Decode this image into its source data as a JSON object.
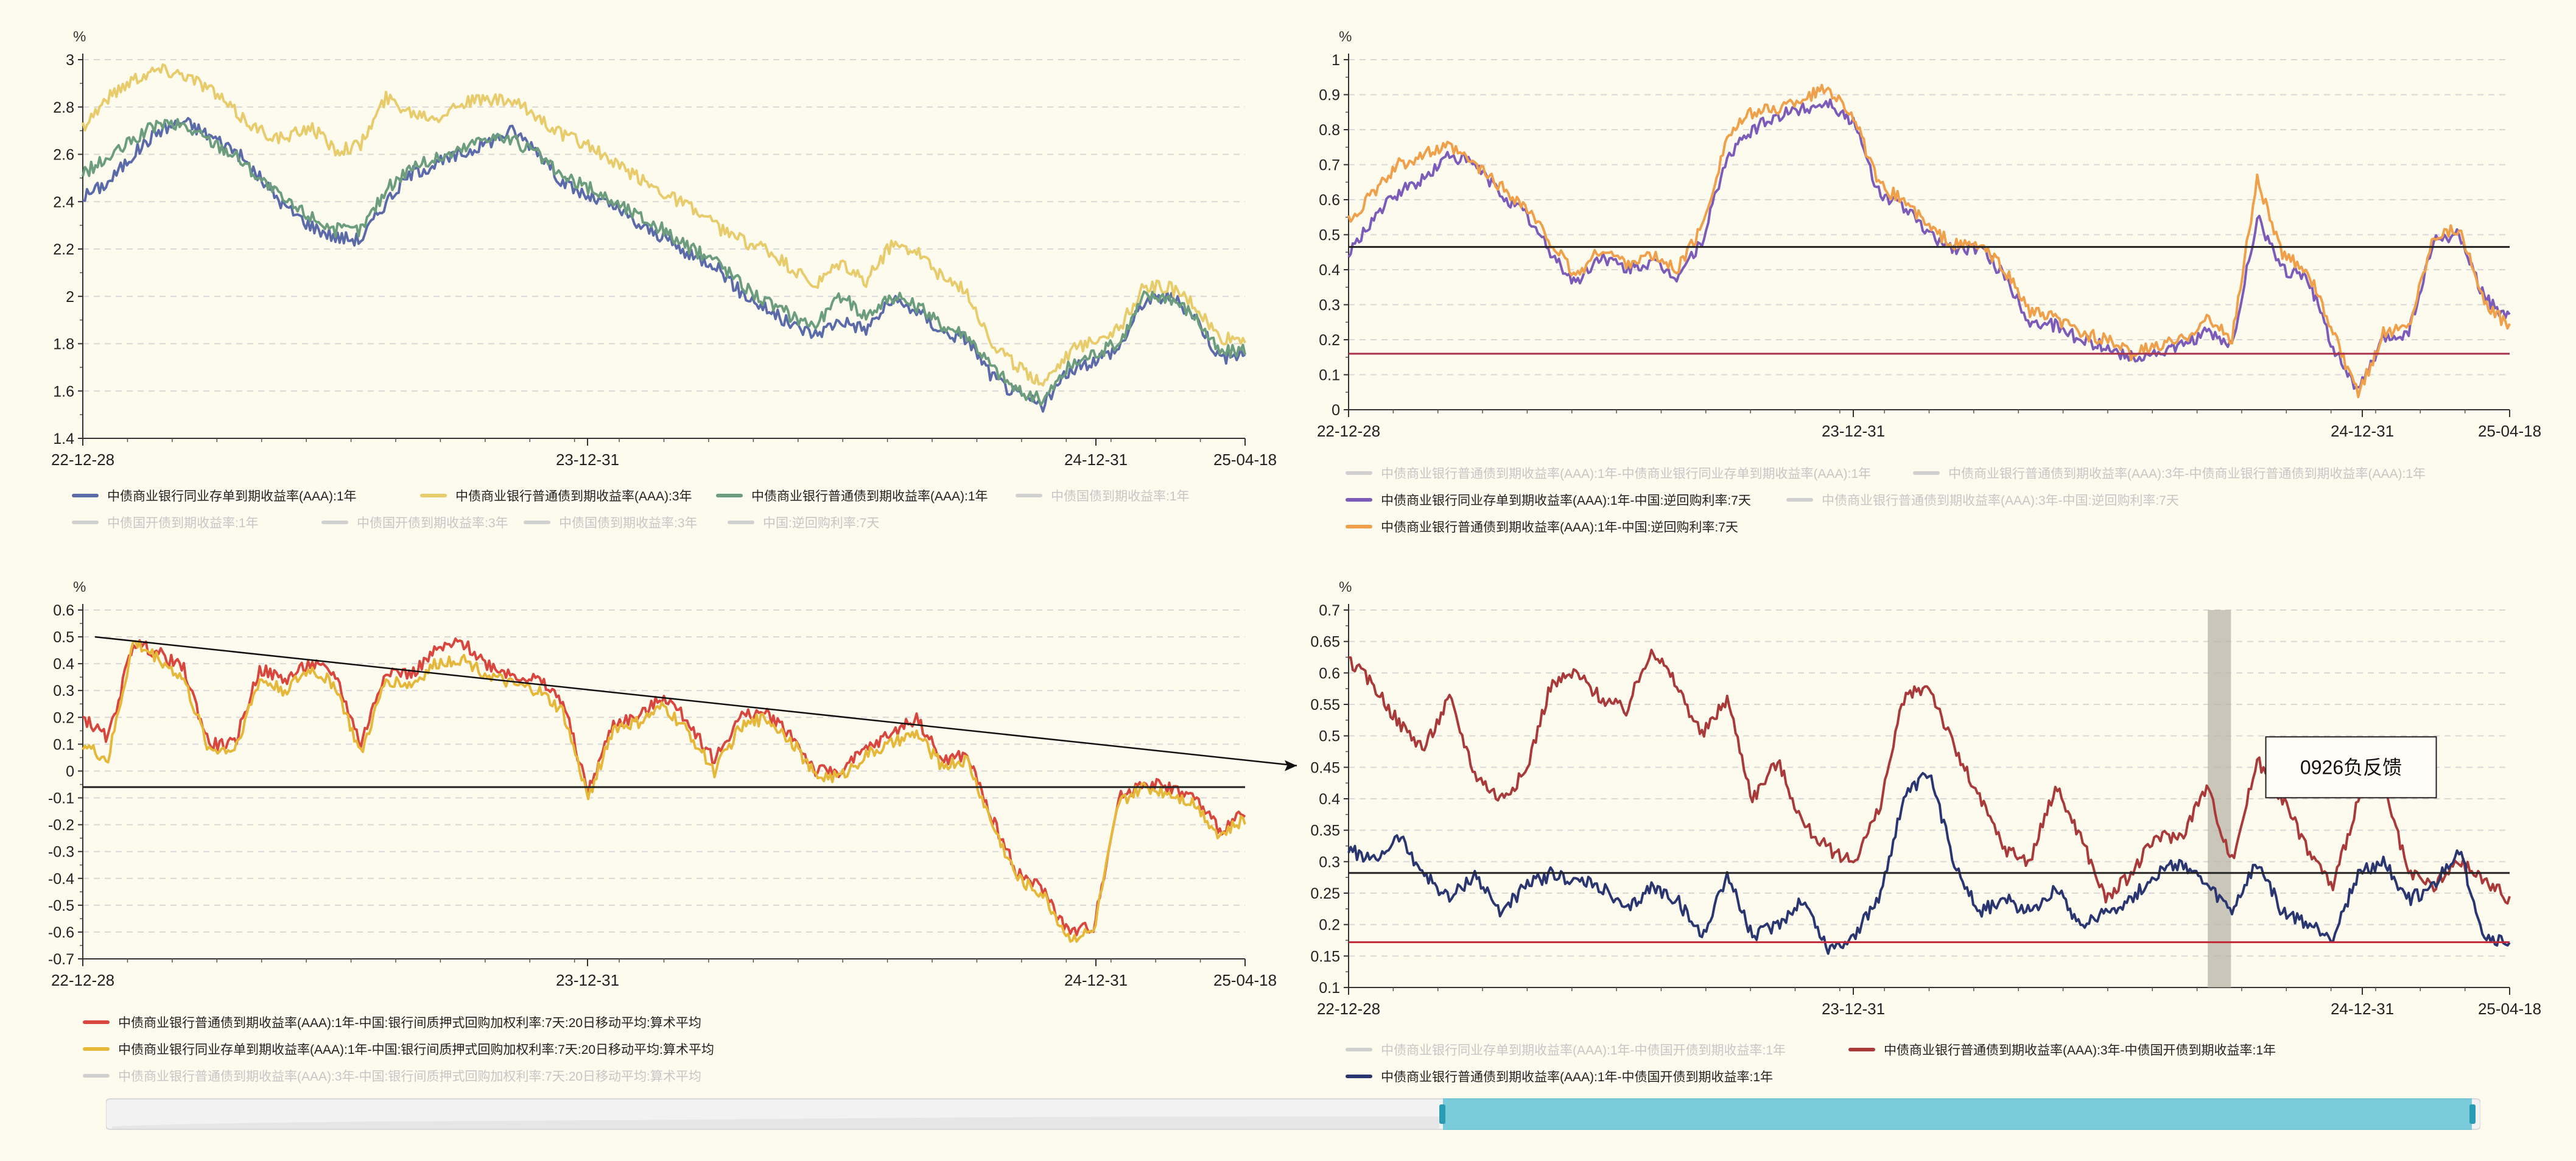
{
  "chart_data": [
    {
      "type": "line",
      "unit_label": "%",
      "x_ticks": [
        "22-12-28",
        "23-12-31",
        "24-12-31",
        "25-04-18"
      ],
      "ylim": [
        1.4,
        3.0
      ],
      "y_ticks": [
        "1.4",
        "1.6",
        "1.8",
        "2",
        "2.2",
        "2.4",
        "2.6",
        "2.8",
        "3"
      ],
      "legend": [
        {
          "name": "中债商业银行同业存单到期收益率(AAA):1年",
          "color": "#5b6aa8",
          "active": true
        },
        {
          "name": "中债商业银行普通债到期收益率(AAA):3年",
          "color": "#e8cc6c",
          "active": true
        },
        {
          "name": "中债商业银行普通债到期收益率(AAA):1年",
          "color": "#6c9e7e",
          "active": true
        },
        {
          "name": "中债国债到期收益率:1年",
          "color": "#cccccc",
          "active": false
        },
        {
          "name": "中债国开债到期收益率:1年",
          "color": "#cccccc",
          "active": false
        },
        {
          "name": "中债国开债到期收益率:3年",
          "color": "#cccccc",
          "active": false
        },
        {
          "name": "中债国债到期收益率:3年",
          "color": "#cccccc",
          "active": false
        },
        {
          "name": "中国:逆回购利率:7天",
          "color": "#cccccc",
          "active": false
        }
      ],
      "series": [
        {
          "name": "中债商业银行同业存单到期收益率(AAA):1年",
          "color": "#5b6aa8",
          "values": [
            2.42,
            2.48,
            2.6,
            2.7,
            2.74,
            2.68,
            2.62,
            2.5,
            2.38,
            2.3,
            2.25,
            2.24,
            2.4,
            2.52,
            2.56,
            2.6,
            2.65,
            2.7,
            2.62,
            2.48,
            2.42,
            2.38,
            2.3,
            2.25,
            2.17,
            2.14,
            2.02,
            1.95,
            1.88,
            1.84,
            1.9,
            1.86,
            1.98,
            1.94,
            1.85,
            1.82,
            1.66,
            1.58,
            1.54,
            1.68,
            1.73,
            1.78,
            1.98,
            2.0,
            1.92,
            1.74,
            1.76
          ]
        },
        {
          "name": "中债商业银行普通债到期收益率(AAA):3年",
          "color": "#e8cc6c",
          "values": [
            2.72,
            2.84,
            2.92,
            2.96,
            2.94,
            2.88,
            2.78,
            2.7,
            2.66,
            2.72,
            2.62,
            2.64,
            2.84,
            2.78,
            2.76,
            2.82,
            2.83,
            2.82,
            2.76,
            2.68,
            2.64,
            2.56,
            2.5,
            2.44,
            2.38,
            2.3,
            2.24,
            2.2,
            2.12,
            2.04,
            2.14,
            2.06,
            2.22,
            2.2,
            2.08,
            2.02,
            1.8,
            1.7,
            1.64,
            1.76,
            1.82,
            1.86,
            2.04,
            2.04,
            1.96,
            1.82,
            1.82
          ]
        },
        {
          "name": "中债商业银行普通债到期收益率(AAA):1年",
          "color": "#6c9e7e",
          "values": [
            2.52,
            2.58,
            2.66,
            2.73,
            2.72,
            2.66,
            2.6,
            2.5,
            2.4,
            2.34,
            2.28,
            2.28,
            2.45,
            2.55,
            2.58,
            2.62,
            2.68,
            2.66,
            2.6,
            2.5,
            2.46,
            2.4,
            2.34,
            2.28,
            2.2,
            2.16,
            2.06,
            1.98,
            1.92,
            1.88,
            2.0,
            1.92,
            2.0,
            1.96,
            1.88,
            1.84,
            1.7,
            1.6,
            1.56,
            1.7,
            1.76,
            1.8,
            2.0,
            2.0,
            1.92,
            1.76,
            1.78
          ]
        }
      ],
      "hlines": []
    },
    {
      "type": "line",
      "unit_label": "%",
      "x_ticks": [
        "22-12-28",
        "23-12-31",
        "24-12-31",
        "25-04-18"
      ],
      "ylim": [
        0,
        1.0
      ],
      "y_ticks": [
        "0",
        "0.1",
        "0.2",
        "0.3",
        "0.4",
        "0.5",
        "0.6",
        "0.7",
        "0.8",
        "0.9",
        "1"
      ],
      "legend": [
        {
          "name": "中债商业银行普通债到期收益率(AAA):1年-中债商业银行同业存单到期收益率(AAA):1年",
          "color": "#cccccc",
          "active": false
        },
        {
          "name": "中债商业银行普通债到期收益率(AAA):3年-中债商业银行普通债到期收益率(AAA):1年",
          "color": "#cccccc",
          "active": false
        },
        {
          "name": "中债商业银行同业存单到期收益率(AAA):1年-中国:逆回购利率:7天",
          "color": "#7c5cb8",
          "active": true
        },
        {
          "name": "中债商业银行普通债到期收益率(AAA):3年-中国:逆回购利率:7天",
          "color": "#cccccc",
          "active": false
        },
        {
          "name": "中债商业银行普通债到期收益率(AAA):1年-中国:逆回购利率:7天",
          "color": "#f0a04a",
          "active": true
        }
      ],
      "series": [
        {
          "name": "中债商业银行同业存单到期收益率(AAA):1年-中国:逆回购利率:7天",
          "color": "#7c5cb8",
          "values": [
            0.44,
            0.55,
            0.62,
            0.66,
            0.73,
            0.7,
            0.62,
            0.56,
            0.45,
            0.36,
            0.44,
            0.4,
            0.42,
            0.38,
            0.48,
            0.72,
            0.8,
            0.84,
            0.86,
            0.88,
            0.82,
            0.62,
            0.58,
            0.5,
            0.46,
            0.46,
            0.38,
            0.25,
            0.24,
            0.2,
            0.18,
            0.15,
            0.16,
            0.18,
            0.22,
            0.18,
            0.55,
            0.4,
            0.38,
            0.18,
            0.05,
            0.2,
            0.22,
            0.48,
            0.5,
            0.32,
            0.26
          ]
        },
        {
          "name": "中债商业银行普通债到期收益率(AAA):1年-中国:逆回购利率:7天",
          "color": "#f0a04a",
          "values": [
            0.54,
            0.62,
            0.7,
            0.73,
            0.75,
            0.7,
            0.64,
            0.58,
            0.48,
            0.38,
            0.46,
            0.42,
            0.44,
            0.4,
            0.52,
            0.78,
            0.85,
            0.86,
            0.89,
            0.92,
            0.84,
            0.64,
            0.6,
            0.52,
            0.47,
            0.47,
            0.4,
            0.28,
            0.26,
            0.22,
            0.2,
            0.16,
            0.18,
            0.2,
            0.26,
            0.2,
            0.66,
            0.44,
            0.4,
            0.22,
            0.04,
            0.22,
            0.24,
            0.5,
            0.52,
            0.3,
            0.24
          ]
        }
      ],
      "hlines": [
        {
          "y": 0.465,
          "color": "#222222"
        },
        {
          "y": 0.16,
          "color": "#a8324a"
        }
      ]
    },
    {
      "type": "line",
      "unit_label": "%",
      "x_ticks": [
        "22-12-28",
        "23-12-31",
        "24-12-31",
        "25-04-18"
      ],
      "ylim": [
        -0.7,
        0.6
      ],
      "y_ticks": [
        "-0.7",
        "-0.6",
        "-0.5",
        "-0.4",
        "-0.3",
        "-0.2",
        "-0.1",
        "0",
        "0.1",
        "0.2",
        "0.3",
        "0.4",
        "0.5",
        "0.6"
      ],
      "legend": [
        {
          "name": "中债商业银行普通债到期收益率(AAA):1年-中国:银行间质押式回购加权利率:7天:20日移动平均:算术平均",
          "color": "#d8463e",
          "active": true
        },
        {
          "name": "中债商业银行同业存单到期收益率(AAA):1年-中国:银行间质押式回购加权利率:7天:20日移动平均:算术平均",
          "color": "#e6b83a",
          "active": true
        },
        {
          "name": "中债商业银行普通债到期收益率(AAA):3年-中国:银行间质押式回购加权利率:7天:20日移动平均:算术平均",
          "color": "#cccccc",
          "active": false
        }
      ],
      "series": [
        {
          "name": "中债商业银行普通债到期收益率(AAA):1年-中国:银行间质押式回购加权利率:7天:20日移动平均:算术平均",
          "color": "#d8463e",
          "values": [
            0.2,
            0.12,
            0.48,
            0.44,
            0.38,
            0.1,
            0.1,
            0.38,
            0.34,
            0.4,
            0.36,
            0.1,
            0.38,
            0.36,
            0.45,
            0.48,
            0.4,
            0.36,
            0.34,
            0.26,
            -0.08,
            0.18,
            0.2,
            0.28,
            0.18,
            0.04,
            0.2,
            0.22,
            0.14,
            0.0,
            0.0,
            0.08,
            0.14,
            0.2,
            0.04,
            0.06,
            -0.18,
            -0.38,
            -0.44,
            -0.6,
            -0.58,
            -0.1,
            -0.04,
            -0.06,
            -0.1,
            -0.22,
            -0.16
          ]
        },
        {
          "name": "中债商业银行同业存单到期收益率(AAA):1年-中国:银行间质押式回购加权利率:7天:20日移动平均:算术平均",
          "color": "#e6b83a",
          "values": [
            0.1,
            0.04,
            0.48,
            0.42,
            0.34,
            0.08,
            0.08,
            0.34,
            0.3,
            0.38,
            0.32,
            0.06,
            0.34,
            0.32,
            0.4,
            0.42,
            0.36,
            0.32,
            0.3,
            0.22,
            -0.1,
            0.16,
            0.18,
            0.24,
            0.14,
            0.0,
            0.16,
            0.2,
            0.12,
            -0.02,
            -0.02,
            0.06,
            0.1,
            0.14,
            0.02,
            0.04,
            -0.2,
            -0.4,
            -0.46,
            -0.62,
            -0.6,
            -0.12,
            -0.06,
            -0.08,
            -0.12,
            -0.24,
            -0.18
          ]
        }
      ],
      "hlines": [
        {
          "y": -0.06,
          "color": "#222222"
        }
      ],
      "trend_line": {
        "from": [
          0.0,
          0.5
        ],
        "to": [
          1.0,
          0.02
        ]
      }
    },
    {
      "type": "line",
      "unit_label": "%",
      "x_ticks": [
        "22-12-28",
        "23-12-31",
        "24-12-31",
        "25-04-18"
      ],
      "ylim": [
        0.1,
        0.7
      ],
      "y_ticks": [
        "0.1",
        "0.15",
        "0.2",
        "0.25",
        "0.3",
        "0.35",
        "0.4",
        "0.45",
        "0.5",
        "0.55",
        "0.6",
        "0.65",
        "0.7"
      ],
      "legend": [
        {
          "name": "中债商业银行同业存单到期收益率(AAA):1年-中债国开债到期收益率:1年",
          "color": "#cccccc",
          "active": false
        },
        {
          "name": "中债商业银行普通债到期收益率(AAA):3年-中债国开债到期收益率:1年",
          "color": "#a83a3a",
          "active": true
        },
        {
          "name": "中债商业银行普通债到期收益率(AAA):1年-中债国开债到期收益率:1年",
          "color": "#2a3670",
          "active": true
        }
      ],
      "series": [
        {
          "name": "中债商业银行普通债到期收益率(AAA):3年-中债国开债到期收益率:1年",
          "color": "#a83a3a",
          "values": [
            0.62,
            0.58,
            0.52,
            0.48,
            0.56,
            0.44,
            0.4,
            0.44,
            0.58,
            0.6,
            0.56,
            0.54,
            0.64,
            0.58,
            0.5,
            0.56,
            0.4,
            0.46,
            0.36,
            0.32,
            0.3,
            0.38,
            0.56,
            0.58,
            0.48,
            0.4,
            0.32,
            0.3,
            0.42,
            0.34,
            0.24,
            0.28,
            0.34,
            0.34,
            0.42,
            0.3,
            0.46,
            0.4,
            0.32,
            0.26,
            0.4,
            0.42,
            0.28,
            0.26,
            0.3,
            0.27,
            0.24
          ]
        },
        {
          "name": "中债商业银行普通债到期收益率(AAA):1年-中债国开债到期收益率:1年",
          "color": "#2a3670",
          "values": [
            0.32,
            0.3,
            0.34,
            0.28,
            0.24,
            0.28,
            0.22,
            0.26,
            0.28,
            0.27,
            0.26,
            0.22,
            0.26,
            0.24,
            0.18,
            0.28,
            0.18,
            0.2,
            0.24,
            0.16,
            0.18,
            0.24,
            0.4,
            0.44,
            0.3,
            0.22,
            0.24,
            0.22,
            0.26,
            0.2,
            0.22,
            0.24,
            0.28,
            0.3,
            0.26,
            0.22,
            0.3,
            0.22,
            0.2,
            0.18,
            0.28,
            0.3,
            0.24,
            0.26,
            0.32,
            0.18,
            0.17
          ]
        }
      ],
      "hlines": [
        {
          "y": 0.282,
          "color": "#222222"
        },
        {
          "y": 0.172,
          "color": "#c0283a"
        }
      ],
      "shaded_band": {
        "from": 0.74,
        "to": 0.76
      },
      "annotation": {
        "text": "0926负反馈",
        "at": [
          0.79,
          0.45
        ]
      }
    }
  ]
}
